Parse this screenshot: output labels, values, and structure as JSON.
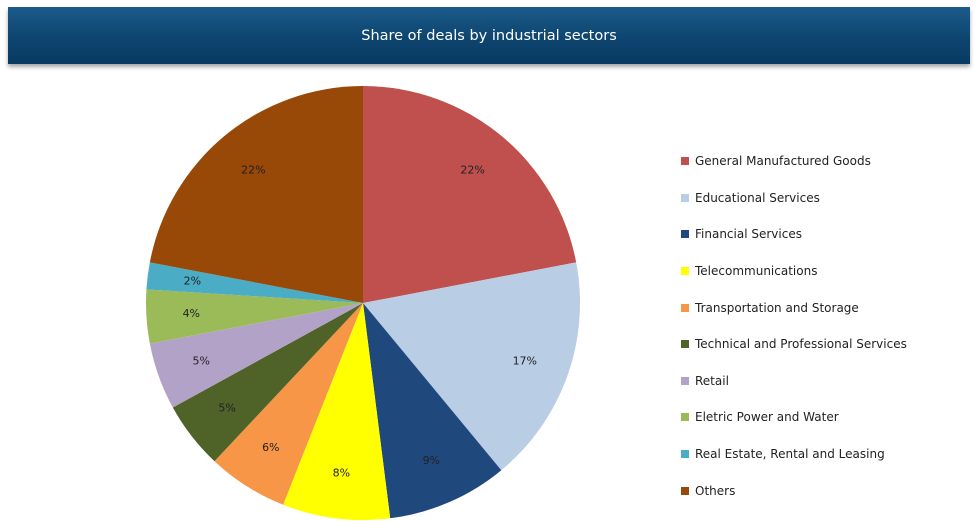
{
  "title": "Share of deals by industrial sectors",
  "chart_data": {
    "type": "pie",
    "title": "Share of deals by industrial sectors",
    "unit": "%",
    "slices": [
      {
        "label": "General Manufactured Goods",
        "value": 22,
        "display": "22%",
        "color": "#c0504d"
      },
      {
        "label": "Educational Services",
        "value": 17,
        "display": "17%",
        "color": "#b9cde5"
      },
      {
        "label": "Financial Services",
        "value": 9,
        "display": "9%",
        "color": "#1f497d"
      },
      {
        "label": "Telecommunications",
        "value": 8,
        "display": "8%",
        "color": "#ffff00"
      },
      {
        "label": "Transportation and Storage",
        "value": 6,
        "display": "6%",
        "color": "#f79646"
      },
      {
        "label": "Technical and Professional Services",
        "value": 5,
        "display": "5%",
        "color": "#4f6228"
      },
      {
        "label": "Retail",
        "value": 5,
        "display": "5%",
        "color": "#b3a2c7"
      },
      {
        "label": "Eletric Power and Water",
        "value": 4,
        "display": "4%",
        "color": "#9bbb59"
      },
      {
        "label": "Real Estate, Rental and Leasing",
        "value": 2,
        "display": "2%",
        "color": "#4bacc6"
      },
      {
        "label": "Others",
        "value": 22,
        "display": "22%",
        "color": "#984807"
      }
    ],
    "legend_position": "right"
  }
}
